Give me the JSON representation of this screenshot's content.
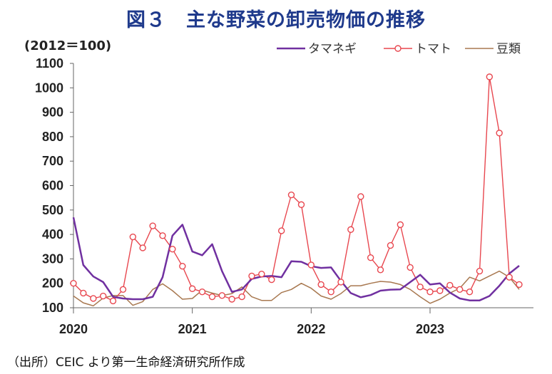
{
  "title": "図３　主な野菜の卸売物価の推移",
  "unit_label": "(2012＝100)",
  "source": "（出所）CEIC より第一生命経済研究所作成",
  "chart_data": {
    "type": "line",
    "ylim": [
      100,
      1100
    ],
    "yticks": [
      100,
      200,
      300,
      400,
      500,
      600,
      700,
      800,
      900,
      1000,
      1100
    ],
    "xlim": [
      2020,
      2023.87
    ],
    "xticks": [
      "2020",
      "2021",
      "2022",
      "2023"
    ],
    "grid": false,
    "legend_position": "top-right",
    "x": [
      2020.0,
      2020.083,
      2020.167,
      2020.25,
      2020.333,
      2020.417,
      2020.5,
      2020.583,
      2020.667,
      2020.75,
      2020.833,
      2020.917,
      2021.0,
      2021.083,
      2021.167,
      2021.25,
      2021.333,
      2021.417,
      2021.5,
      2021.583,
      2021.667,
      2021.75,
      2021.833,
      2021.917,
      2022.0,
      2022.083,
      2022.167,
      2022.25,
      2022.333,
      2022.417,
      2022.5,
      2022.583,
      2022.667,
      2022.75,
      2022.833,
      2022.917,
      2023.0,
      2023.083,
      2023.167,
      2023.25,
      2023.333,
      2023.417,
      2023.5,
      2023.583,
      2023.667,
      2023.75
    ],
    "series": [
      {
        "name": "タマネギ",
        "color": "#7030a0",
        "marker": "none",
        "values": [
          470,
          275,
          228,
          205,
          145,
          138,
          135,
          135,
          145,
          225,
          395,
          440,
          330,
          315,
          360,
          250,
          165,
          175,
          218,
          228,
          230,
          225,
          290,
          288,
          270,
          263,
          265,
          210,
          160,
          143,
          152,
          170,
          174,
          175,
          205,
          235,
          195,
          200,
          162,
          138,
          130,
          130,
          148,
          190,
          240,
          272
        ]
      },
      {
        "name": "トマト",
        "color": "#e8474f",
        "marker": "circle",
        "values": [
          200,
          160,
          138,
          148,
          128,
          175,
          390,
          345,
          435,
          395,
          340,
          270,
          178,
          165,
          145,
          150,
          135,
          145,
          230,
          238,
          215,
          415,
          562,
          522,
          275,
          195,
          165,
          205,
          420,
          555,
          305,
          255,
          355,
          440,
          265,
          185,
          165,
          170,
          192,
          175,
          165,
          250,
          1045,
          815,
          225,
          195
        ]
      },
      {
        "name": "豆類",
        "color": "#a87850",
        "marker": "none",
        "values": [
          148,
          120,
          108,
          140,
          150,
          150,
          110,
          125,
          175,
          198,
          170,
          135,
          138,
          172,
          160,
          150,
          158,
          185,
          145,
          130,
          130,
          162,
          175,
          200,
          180,
          148,
          135,
          158,
          190,
          190,
          200,
          208,
          205,
          195,
          175,
          145,
          118,
          135,
          160,
          180,
          225,
          210,
          230,
          250,
          225,
          175
        ]
      }
    ]
  }
}
